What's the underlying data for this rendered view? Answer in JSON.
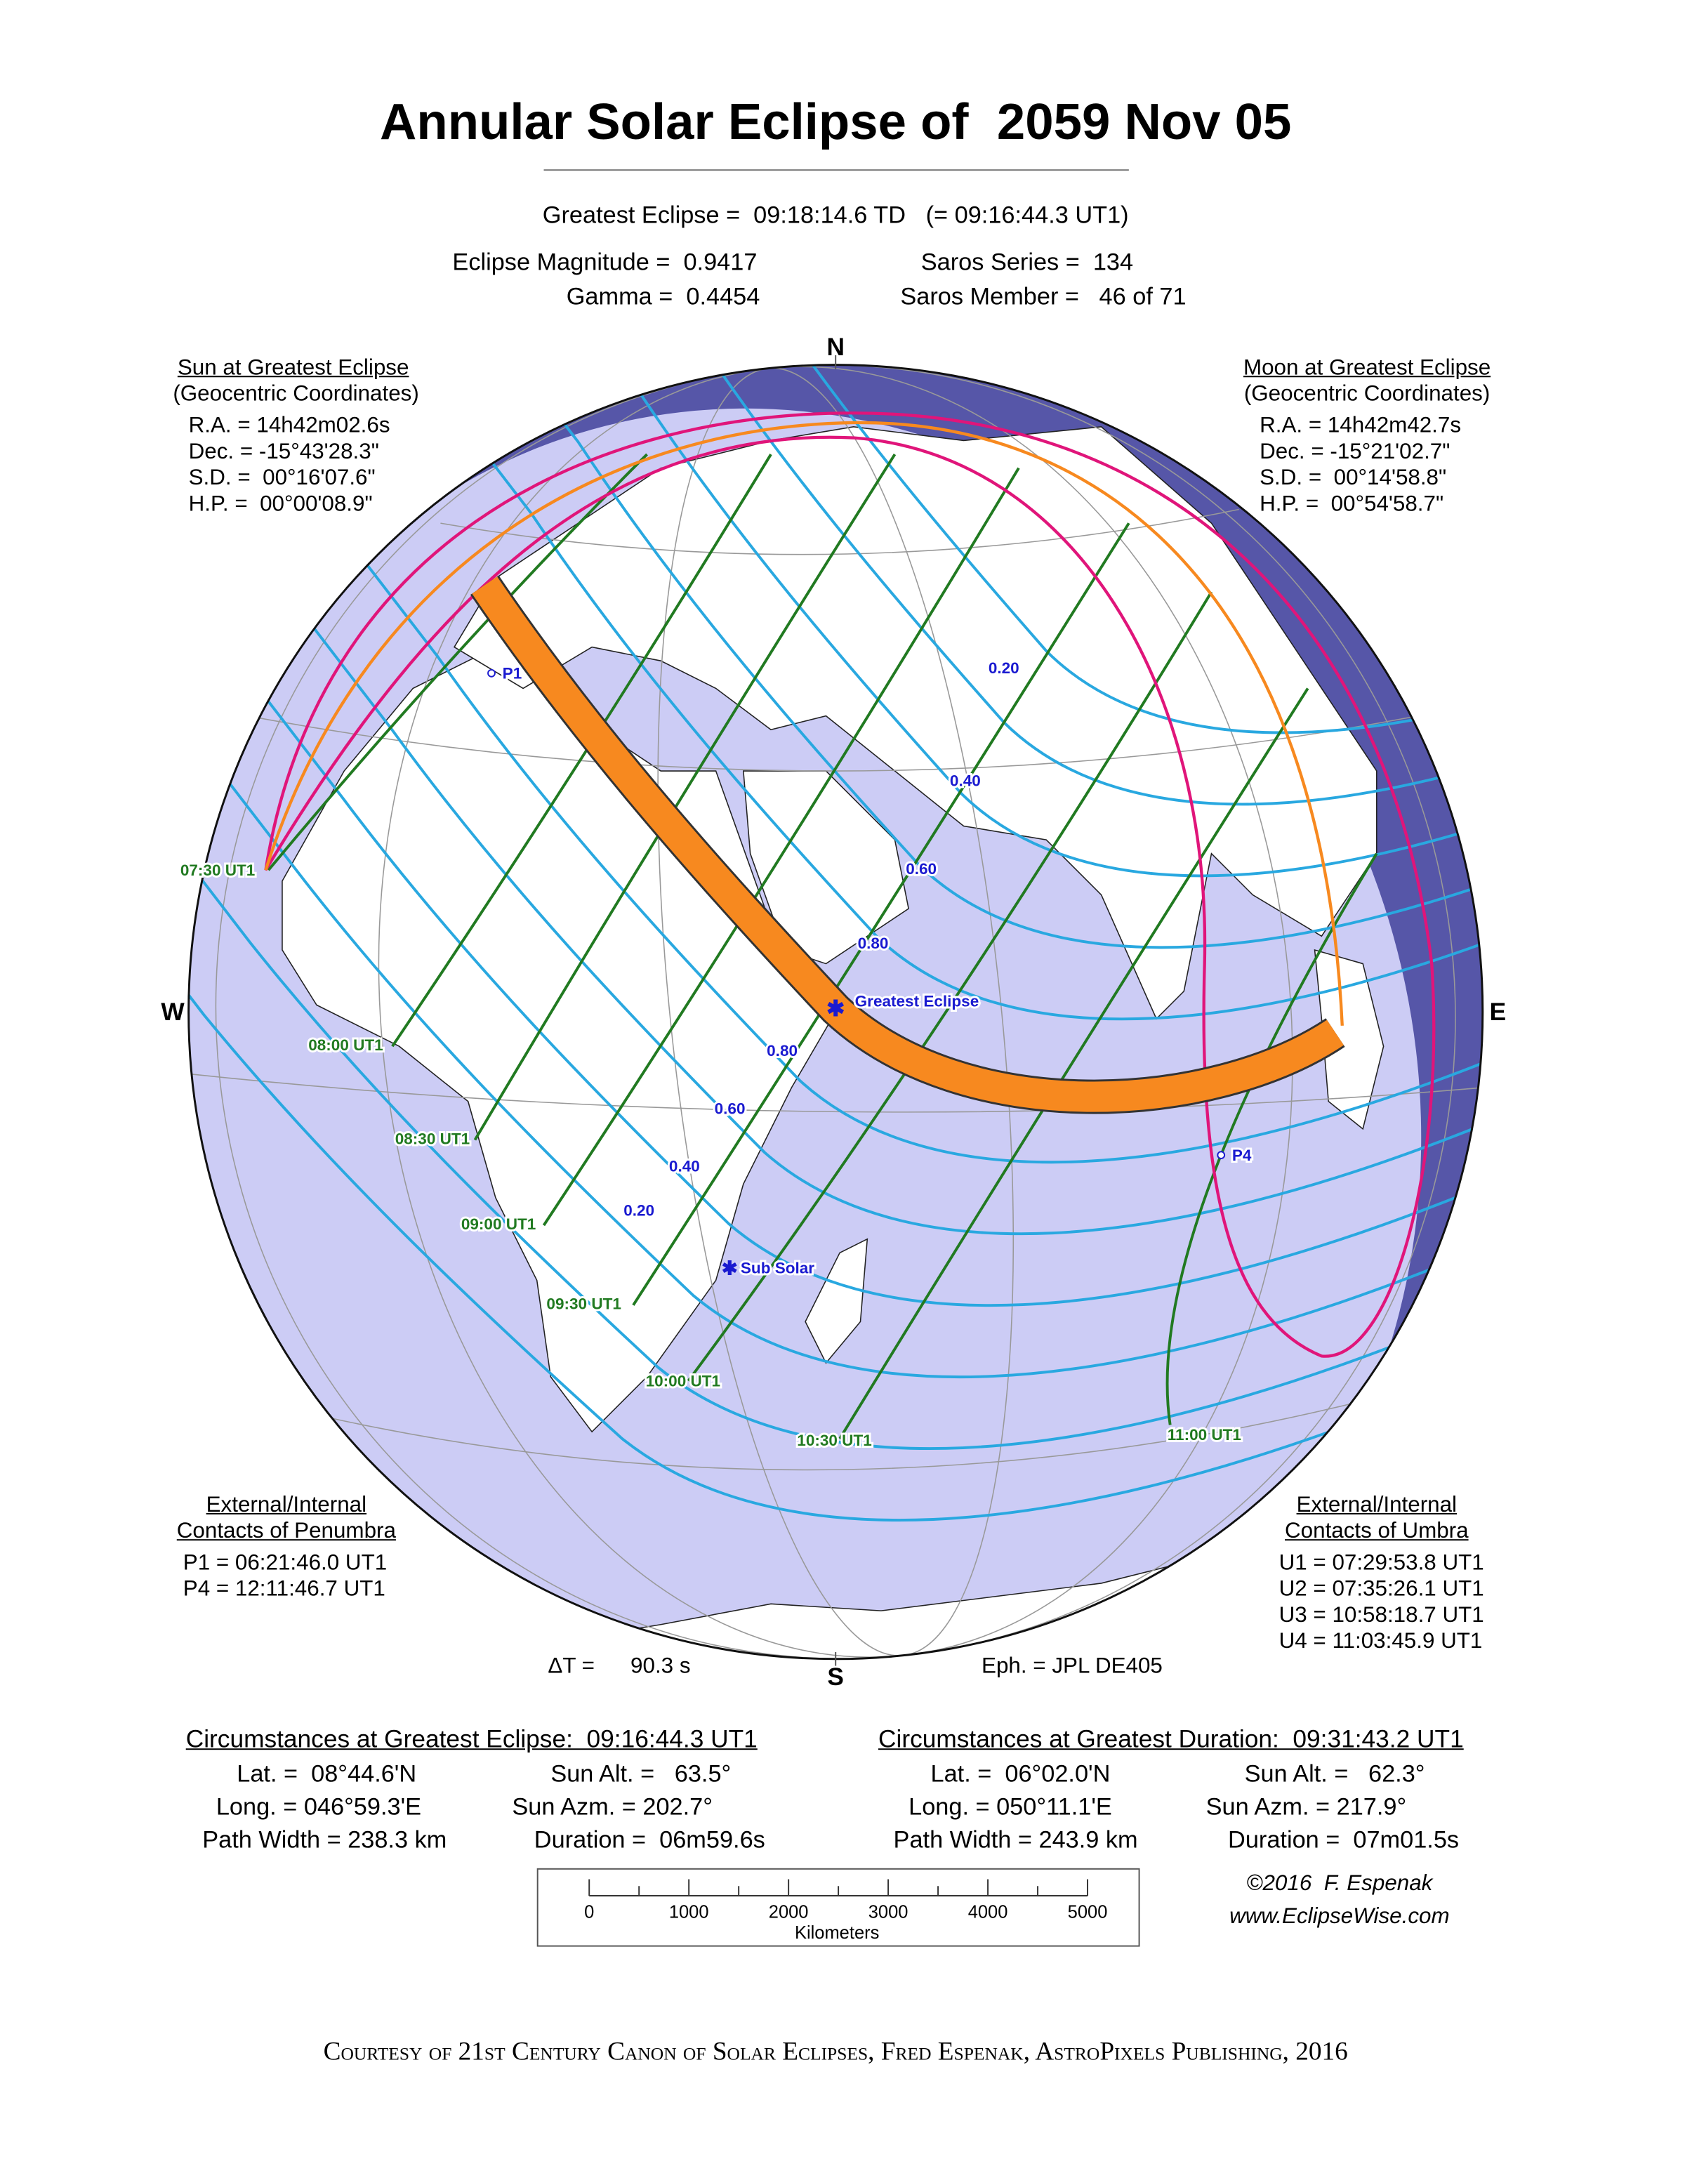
{
  "title": "Annular Solar Eclipse of  2059 Nov 05",
  "header": {
    "greatest_eclipse": "Greatest Eclipse =  09:18:14.6 TD   (= 09:16:44.3 UT1)",
    "magnitude": "Eclipse Magnitude =  0.9417",
    "gamma": "Gamma =  0.4454",
    "saros_series": "Saros Series =  134",
    "saros_member": "Saros Member =   46 of 71"
  },
  "sun": {
    "title": "Sun at Greatest Eclipse",
    "subtitle": "(Geocentric Coordinates)",
    "ra": "R.A. = 14h42m02.6s",
    "dec": "Dec. = -15°43'28.3\"",
    "sd": "S.D. =  00°16'07.6\"",
    "hp": "H.P. =  00°00'08.9\""
  },
  "moon": {
    "title": "Moon at Greatest Eclipse",
    "subtitle": "(Geocentric Coordinates)",
    "ra": "R.A. = 14h42m42.7s",
    "dec": "Dec. = -15°21'02.7\"",
    "sd": "S.D. =  00°14'58.8\"",
    "hp": "H.P. =  00°54'58.7\""
  },
  "compass": {
    "n": "N",
    "s": "S",
    "e": "E",
    "w": "W"
  },
  "map": {
    "colors": {
      "night": "#5656a8",
      "day": "#ccccf5",
      "land": "#ffffff",
      "path": "#f7891f",
      "magnitude": "#29a8e0",
      "time": "#217a21",
      "limit_penumbra": "#e0157a",
      "limit_orange": "#f7891f",
      "label_blue": "#1a1ad0"
    },
    "magnitude_labels_north": [
      "0.20",
      "0.40",
      "0.60",
      "0.80"
    ],
    "magnitude_labels_south": [
      "0.80",
      "0.60",
      "0.40",
      "0.20"
    ],
    "time_labels": [
      "07:30 UT1",
      "08:00 UT1",
      "08:30 UT1",
      "09:00 UT1",
      "09:30 UT1",
      "10:00 UT1",
      "10:30 UT1",
      "11:00 UT1"
    ],
    "greatest_eclipse": "Greatest Eclipse",
    "sub_solar": "Sub Solar",
    "p1": "P1",
    "p4": "P4"
  },
  "penumbra": {
    "title1": "External/Internal",
    "title2": "Contacts of Penumbra",
    "p1": "P1 = 06:21:46.0 UT1",
    "p4": "P4 = 12:11:46.7 UT1"
  },
  "umbra": {
    "title1": "External/Internal",
    "title2": "Contacts of Umbra",
    "u1": "U1 = 07:29:53.8 UT1",
    "u2": "U2 = 07:35:26.1 UT1",
    "u3": "U3 = 10:58:18.7 UT1",
    "u4": "U4 = 11:03:45.9 UT1"
  },
  "delta_t": {
    "label": "ΔT =",
    "value": "90.3 s"
  },
  "ephemeris": "Eph. = JPL DE405",
  "greatest_eclipse_circ": {
    "title": "Circumstances at Greatest Eclipse:  09:16:44.3 UT1",
    "lat": "Lat. =  08°44.6'N",
    "long": "Long. = 046°59.3'E",
    "path_width": "Path Width = 238.3 km",
    "sun_alt": "Sun Alt. =   63.5°",
    "sun_azm": "Sun Azm. = 202.7°",
    "duration": "Duration =  06m59.6s"
  },
  "greatest_duration_circ": {
    "title": "Circumstances at Greatest Duration:  09:31:43.2 UT1",
    "lat": "Lat. =  06°02.0'N",
    "long": "Long. = 050°11.1'E",
    "path_width": "Path Width = 243.9 km",
    "sun_alt": "Sun Alt. =   62.3°",
    "sun_azm": "Sun Azm. = 217.9°",
    "duration": "Duration =  07m01.5s"
  },
  "scale": {
    "ticks": [
      "0",
      "1000",
      "2000",
      "3000",
      "4000",
      "5000"
    ],
    "unit": "Kilometers"
  },
  "credit": {
    "copyright": "©2016  F. Espenak",
    "url": "www.EclipseWise.com"
  },
  "footer": "Courtesy of 21st Century Canon of Solar Eclipses, Fred Espenak, AstroPixels Publishing, 2016"
}
